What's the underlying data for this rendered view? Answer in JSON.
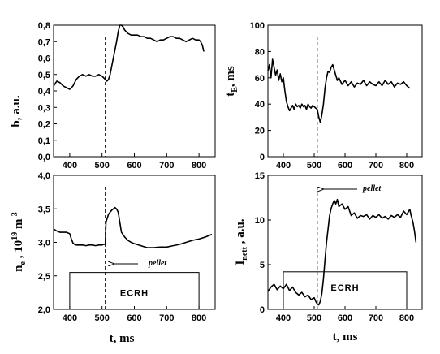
{
  "figure": {
    "x_axis_label": "t,  ms",
    "pellet_label": "pellet",
    "ecrh_label": "ECRH",
    "pellet_time_ms": 510
  },
  "chart_data": [
    {
      "id": "b",
      "type": "line",
      "ylabel": "b,  a.u.",
      "xlim": [
        350,
        850
      ],
      "ylim": [
        0.0,
        0.8
      ],
      "xticks": [
        "400",
        "500",
        "600",
        "700",
        "800"
      ],
      "yticks": [
        "0,0",
        "0,1",
        "0,2",
        "0,3",
        "0,4",
        "0,5",
        "0,6",
        "0,7",
        "0,8"
      ],
      "x": [
        350,
        360,
        370,
        380,
        390,
        400,
        410,
        420,
        430,
        440,
        450,
        460,
        470,
        480,
        490,
        500,
        505,
        510,
        515,
        520,
        525,
        530,
        535,
        540,
        545,
        550,
        555,
        560,
        565,
        570,
        580,
        590,
        600,
        610,
        620,
        630,
        640,
        650,
        660,
        670,
        680,
        690,
        700,
        710,
        720,
        730,
        740,
        750,
        760,
        770,
        780,
        790,
        800,
        805,
        810,
        815
      ],
      "y": [
        0.43,
        0.46,
        0.45,
        0.43,
        0.42,
        0.41,
        0.43,
        0.47,
        0.49,
        0.5,
        0.49,
        0.5,
        0.49,
        0.49,
        0.5,
        0.49,
        0.48,
        0.47,
        0.46,
        0.47,
        0.5,
        0.55,
        0.6,
        0.65,
        0.7,
        0.76,
        0.8,
        0.8,
        0.79,
        0.77,
        0.75,
        0.74,
        0.74,
        0.74,
        0.73,
        0.73,
        0.72,
        0.72,
        0.71,
        0.7,
        0.71,
        0.71,
        0.72,
        0.73,
        0.73,
        0.72,
        0.72,
        0.71,
        0.7,
        0.71,
        0.72,
        0.71,
        0.71,
        0.7,
        0.68,
        0.64
      ]
    },
    {
      "id": "tauE",
      "type": "line",
      "ylabel": "τE,  ms",
      "xlim": [
        350,
        850
      ],
      "ylim": [
        0,
        100
      ],
      "xticks": [
        "400",
        "500",
        "600",
        "700",
        "800"
      ],
      "yticks": [
        "0",
        "20",
        "40",
        "60",
        "80",
        "100"
      ],
      "x": [
        350,
        355,
        360,
        365,
        370,
        375,
        380,
        385,
        390,
        395,
        400,
        405,
        410,
        415,
        420,
        425,
        430,
        435,
        440,
        445,
        450,
        455,
        460,
        465,
        470,
        475,
        480,
        485,
        490,
        495,
        500,
        505,
        510,
        515,
        520,
        525,
        530,
        535,
        540,
        545,
        550,
        555,
        560,
        565,
        570,
        575,
        580,
        590,
        600,
        610,
        620,
        630,
        640,
        650,
        660,
        670,
        680,
        690,
        700,
        710,
        720,
        730,
        740,
        750,
        760,
        770,
        780,
        790,
        800,
        810
      ],
      "y": [
        65,
        70,
        60,
        74,
        68,
        62,
        66,
        58,
        63,
        57,
        60,
        50,
        42,
        38,
        35,
        37,
        39,
        36,
        40,
        38,
        39,
        37,
        40,
        38,
        39,
        36,
        40,
        38,
        37,
        39,
        38,
        37,
        36,
        30,
        26,
        32,
        40,
        52,
        60,
        65,
        64,
        68,
        70,
        66,
        62,
        58,
        60,
        55,
        58,
        54,
        57,
        53,
        56,
        55,
        58,
        54,
        57,
        55,
        54,
        57,
        54,
        58,
        55,
        57,
        53,
        56,
        55,
        57,
        54,
        52
      ]
    },
    {
      "id": "ne",
      "type": "line",
      "ylabel": "ne ,  10^19 m^-3",
      "xlim": [
        350,
        850
      ],
      "ylim": [
        2.0,
        4.0
      ],
      "xticks": [
        "400",
        "500",
        "600",
        "700",
        "800"
      ],
      "yticks": [
        "2,0",
        "2,5",
        "3,0",
        "3,5",
        "4,0"
      ],
      "x": [
        350,
        360,
        370,
        380,
        390,
        400,
        405,
        410,
        415,
        420,
        430,
        440,
        450,
        460,
        470,
        480,
        490,
        500,
        505,
        510,
        512,
        520,
        525,
        530,
        535,
        540,
        545,
        550,
        555,
        560,
        570,
        580,
        590,
        600,
        620,
        640,
        660,
        680,
        700,
        720,
        740,
        760,
        780,
        800,
        820,
        840
      ],
      "y": [
        3.2,
        3.17,
        3.15,
        3.15,
        3.15,
        3.13,
        3.05,
        2.99,
        2.97,
        2.96,
        2.96,
        2.96,
        2.95,
        2.96,
        2.96,
        2.95,
        2.96,
        2.96,
        2.97,
        2.97,
        3.3,
        3.42,
        3.45,
        3.48,
        3.5,
        3.52,
        3.5,
        3.45,
        3.3,
        3.15,
        3.08,
        3.03,
        3.0,
        2.98,
        2.95,
        2.92,
        2.92,
        2.93,
        2.93,
        2.95,
        2.97,
        3.0,
        3.03,
        3.05,
        3.08,
        3.12
      ]
    },
    {
      "id": "Inett",
      "type": "line",
      "ylabel": "Inett ,  a.u.",
      "xlim": [
        350,
        850
      ],
      "ylim": [
        0,
        15
      ],
      "xticks": [
        "400",
        "500",
        "600",
        "700",
        "800"
      ],
      "yticks": [
        "0",
        "5",
        "10",
        "15"
      ],
      "x": [
        350,
        360,
        370,
        380,
        390,
        400,
        410,
        420,
        430,
        440,
        450,
        460,
        470,
        480,
        490,
        500,
        505,
        510,
        515,
        520,
        525,
        530,
        535,
        540,
        545,
        550,
        555,
        560,
        565,
        570,
        575,
        580,
        590,
        600,
        610,
        620,
        630,
        640,
        650,
        660,
        670,
        680,
        690,
        700,
        710,
        720,
        730,
        740,
        750,
        760,
        770,
        780,
        790,
        800,
        810,
        815,
        820,
        825,
        830
      ],
      "y": [
        2.0,
        2.5,
        2.8,
        2.2,
        2.6,
        2.3,
        2.8,
        2.1,
        2.5,
        1.9,
        1.6,
        1.9,
        1.4,
        1.6,
        1.1,
        1.3,
        0.9,
        0.6,
        0.5,
        0.9,
        1.8,
        3.4,
        5.5,
        7.5,
        9.0,
        10.5,
        11.3,
        11.8,
        12.2,
        11.8,
        12.3,
        11.5,
        11.8,
        11.2,
        11.5,
        10.5,
        10.8,
        10.2,
        10.5,
        10.4,
        10.6,
        10.1,
        10.5,
        10.3,
        10.6,
        10.2,
        10.4,
        10.1,
        10.5,
        10.3,
        10.6,
        10.3,
        11.0,
        10.6,
        11.2,
        10.4,
        9.8,
        8.8,
        7.5
      ]
    }
  ]
}
